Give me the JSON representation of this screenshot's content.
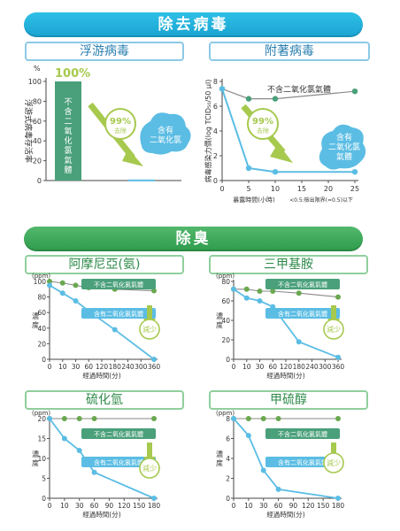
{
  "header": {
    "title": "除去病毒",
    "odor_title": "除臭"
  },
  "sections": {
    "floating": "浮游病毒",
    "attached": "附著病毒",
    "ammonia": "阿摩尼亞(氨)",
    "tma": "三甲基胺",
    "h2s": "硫化氫",
    "methyl": "甲硫醇"
  },
  "colors": {
    "blue": "#5bbde4",
    "grey": "#8a8a8a",
    "green": "#6aa84f",
    "lime": "#a6c94e",
    "teal": "#4aa07a"
  },
  "chart_data": [
    {
      "id": "floating",
      "type": "bar",
      "categories": [
        "不含二氧化氯氣體",
        "含有二氧化氯"
      ],
      "values": [
        100,
        1
      ],
      "ylabel": "浮游式病毒存活率",
      "unit": "%",
      "ylim": [
        0,
        100
      ],
      "yticks": [
        "0",
        "20",
        "40",
        "60",
        "80",
        "100"
      ],
      "annotations": {
        "top": "100%",
        "badge_pct": "99%",
        "badge_sub": "去除",
        "cloud": "含有二氧化氯"
      }
    },
    {
      "id": "attached",
      "type": "line",
      "xlabel": "暴露時間(小時)",
      "ylabel": "病毒感染力價(log TCID₅₀/50 μl)",
      "footnote": "<0.5:檢出限界(=0.5)以下",
      "xticks": [
        "0",
        "5",
        "10",
        "15",
        "20",
        "25"
      ],
      "yticks": [
        "0",
        "2",
        "4",
        "6",
        "8"
      ],
      "xlim": [
        0,
        25
      ],
      "ylim": [
        0,
        8
      ],
      "series": [
        {
          "name": "不含二氧化氯氣體",
          "x": [
            0,
            5,
            10,
            25
          ],
          "y": [
            7.4,
            6.6,
            6.6,
            7.2
          ]
        },
        {
          "name": "含有二氧化氯氣體",
          "x": [
            0,
            5,
            10,
            25
          ],
          "y": [
            7.4,
            1.0,
            0.7,
            0.7
          ]
        }
      ],
      "annotations": {
        "badge_pct": "99%",
        "badge_sub": "去除"
      }
    },
    {
      "id": "ammonia",
      "type": "line",
      "unit": "(ppm)",
      "ylabel": "濃度",
      "xlabel": "經過時間(分)",
      "xticks": [
        "0",
        "10",
        "30",
        "60",
        "120",
        "180",
        "240",
        "300",
        "360"
      ],
      "yticks": [
        "0",
        "20",
        "40",
        "60",
        "80",
        "100"
      ],
      "ylim": [
        0,
        100
      ],
      "series": [
        {
          "name": "不含二氧化氯氣體",
          "x": [
            0,
            10,
            30,
            60,
            180,
            360
          ],
          "y": [
            100,
            98,
            95,
            92,
            90,
            88
          ]
        },
        {
          "name": "含有二氧化氯氣體",
          "x": [
            0,
            10,
            30,
            60,
            180,
            360
          ],
          "y": [
            95,
            85,
            75,
            62,
            38,
            0
          ]
        }
      ],
      "annotations": {
        "reduce": "減少"
      }
    },
    {
      "id": "tma",
      "type": "line",
      "unit": "(ppm)",
      "ylabel": "濃度",
      "xlabel": "經過時間(分)",
      "xticks": [
        "0",
        "10",
        "30",
        "60",
        "120",
        "180",
        "240",
        "300",
        "360"
      ],
      "yticks": [
        "0",
        "20",
        "40",
        "60",
        "80"
      ],
      "ylim": [
        0,
        80
      ],
      "series": [
        {
          "name": "不含二氧化氯氣體",
          "x": [
            0,
            10,
            30,
            60,
            180,
            360
          ],
          "y": [
            72,
            72,
            70,
            70,
            68,
            64
          ]
        },
        {
          "name": "含有二氧化氯氣體",
          "x": [
            0,
            10,
            30,
            60,
            180,
            360
          ],
          "y": [
            72,
            63,
            60,
            54,
            18,
            2
          ]
        }
      ],
      "annotations": {
        "reduce": "減少"
      }
    },
    {
      "id": "h2s",
      "type": "line",
      "unit": "(ppm)",
      "ylabel": "濃度",
      "xlabel": "經過時間(分)",
      "xticks": [
        "0",
        "10",
        "30",
        "60",
        "90",
        "120",
        "150",
        "180"
      ],
      "yticks": [
        "0",
        "5",
        "10",
        "15",
        "20"
      ],
      "ylim": [
        0,
        20
      ],
      "series": [
        {
          "name": "不含二氧化氯氣體",
          "x": [
            0,
            10,
            30,
            60,
            180
          ],
          "y": [
            20,
            20,
            20,
            20,
            20
          ]
        },
        {
          "name": "含有二氧化氯氣體",
          "x": [
            0,
            10,
            30,
            60,
            180
          ],
          "y": [
            20,
            15,
            12,
            6.5,
            0
          ]
        }
      ],
      "annotations": {
        "reduce": "減少"
      }
    },
    {
      "id": "methyl",
      "type": "line",
      "unit": "(ppm)",
      "ylabel": "濃度",
      "xlabel": "經過時間(分)",
      "xticks": [
        "0",
        "10",
        "30",
        "60",
        "90",
        "120",
        "150",
        "180"
      ],
      "yticks": [
        "0",
        "2",
        "4",
        "6",
        "8"
      ],
      "ylim": [
        0,
        8
      ],
      "series": [
        {
          "name": "不含二氧化氯氣體",
          "x": [
            0,
            10,
            30,
            60,
            180
          ],
          "y": [
            8,
            8,
            8,
            8,
            8
          ]
        },
        {
          "name": "含有二氧化氯氣體",
          "x": [
            0,
            10,
            30,
            60,
            180
          ],
          "y": [
            8,
            6.3,
            2.8,
            0.9,
            0
          ]
        }
      ],
      "annotations": {
        "reduce": "減少"
      }
    }
  ]
}
